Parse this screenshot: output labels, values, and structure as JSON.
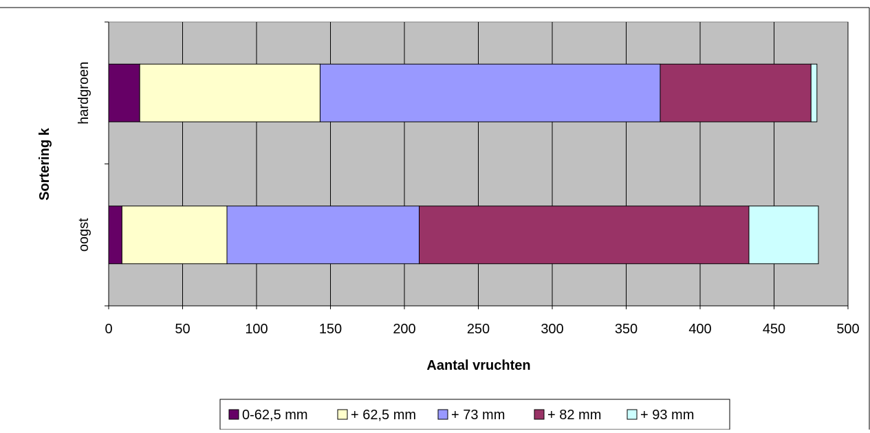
{
  "chart_data": {
    "type": "bar",
    "orientation": "horizontal",
    "stacked": true,
    "categories": [
      "oogst",
      "hardgroen"
    ],
    "series": [
      {
        "name": "0-62,5 mm",
        "values": [
          9,
          21
        ],
        "color": "#660066"
      },
      {
        "name": "+ 62,5 mm",
        "values": [
          71,
          122
        ],
        "color": "#FFFFCC"
      },
      {
        "name": "+ 73 mm",
        "values": [
          130,
          230
        ],
        "color": "#9999FF"
      },
      {
        "name": "+ 82 mm",
        "values": [
          223,
          102
        ],
        "color": "#993366"
      },
      {
        "name": "+ 93 mm",
        "values": [
          47,
          4
        ],
        "color": "#CCFFFF"
      }
    ],
    "xlabel": "Aantal vruchten",
    "ylabel": "Sortering k",
    "xlim": [
      0,
      500
    ],
    "xticks": [
      "0",
      "50",
      "100",
      "150",
      "200",
      "250",
      "300",
      "350",
      "400",
      "450",
      "500"
    ],
    "grid": true,
    "plot_background": "#C0C0C0",
    "legend_position": "bottom"
  }
}
